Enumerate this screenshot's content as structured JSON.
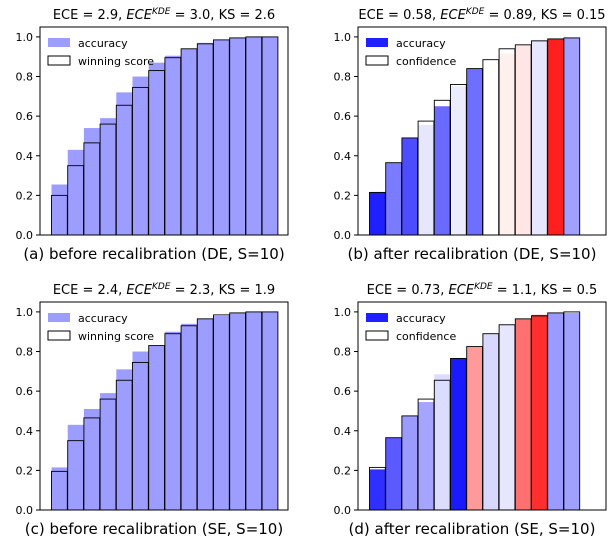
{
  "chart_data": [
    {
      "type": "bar",
      "title": "ECE = 2.9, ECE^KDE = 3.0, KS = 2.6",
      "title_parts": {
        "pre": "ECE = 2.9, ",
        "sym": "ECE",
        "sup": "KDE",
        "post": " = 3.0, KS = 2.6"
      },
      "caption": "(a) before recalibration (DE, S=10)",
      "ylim": [
        0,
        1.05
      ],
      "yticks": [
        "0.0",
        "0.2",
        "0.4",
        "0.6",
        "0.8",
        "1.0"
      ],
      "grid": false,
      "legend_position": "top-left",
      "style": "uniform",
      "series": [
        {
          "name": "accuracy",
          "values": [
            0.255,
            0.43,
            0.54,
            0.59,
            0.72,
            0.8,
            0.87,
            0.905,
            0.94,
            0.97,
            0.985,
            0.995,
            1.0,
            1.0
          ]
        },
        {
          "name": "winning score",
          "values": [
            0.2,
            0.35,
            0.465,
            0.56,
            0.655,
            0.745,
            0.83,
            0.895,
            0.94,
            0.965,
            0.985,
            0.995,
            1.0,
            1.0
          ]
        }
      ]
    },
    {
      "type": "bar",
      "title": "ECE = 0.58, ECE^KDE = 0.89, KS = 0.15",
      "title_parts": {
        "pre": "ECE = 0.58, ",
        "sym": "ECE",
        "sup": "KDE",
        "post": " = 0.89, KS = 0.15"
      },
      "caption": "(b) after recalibration (DE, S=10)",
      "ylim": [
        0,
        1.05
      ],
      "yticks": [
        "0.0",
        "0.2",
        "0.4",
        "0.6",
        "0.8",
        "1.0"
      ],
      "grid": false,
      "legend_position": "top-left",
      "style": "diverging",
      "series": [
        {
          "name": "accuracy",
          "values": [
            0.215,
            0.365,
            0.49,
            0.555,
            0.65,
            0.75,
            0.84,
            0.865,
            0.915,
            0.96,
            0.985,
            0.99,
            0.995,
            null
          ]
        },
        {
          "name": "confidence",
          "values": [
            0.215,
            0.365,
            0.49,
            0.575,
            0.68,
            0.76,
            0.84,
            0.885,
            0.94,
            0.96,
            0.98,
            0.99,
            0.995,
            null
          ]
        }
      ],
      "colors": [
        "#1f1fff",
        "#7b7bff",
        "#4d4dff",
        "#e6e6ff",
        "#6a6aff",
        "#ececff",
        "#6e6eff",
        "#ffffff",
        "#fff0f0",
        "#ffe6e6",
        "#e6e6ff",
        "#ff1f1f",
        "#a0a0ff",
        null
      ]
    },
    {
      "type": "bar",
      "title": "ECE = 2.4, ECE^KDE = 2.3, KS = 1.9",
      "title_parts": {
        "pre": "ECE = 2.4, ",
        "sym": "ECE",
        "sup": "KDE",
        "post": " = 2.3, KS = 1.9"
      },
      "caption": "(c) before recalibration (SE, S=10)",
      "ylim": [
        0,
        1.05
      ],
      "yticks": [
        "0.0",
        "0.2",
        "0.4",
        "0.6",
        "0.8",
        "1.0"
      ],
      "grid": false,
      "legend_position": "top-left",
      "style": "uniform",
      "series": [
        {
          "name": "accuracy",
          "values": [
            0.215,
            0.43,
            0.51,
            0.59,
            0.71,
            0.8,
            0.83,
            0.9,
            0.94,
            0.965,
            0.98,
            0.995,
            1.0,
            1.0
          ]
        },
        {
          "name": "winning score",
          "values": [
            0.195,
            0.35,
            0.465,
            0.56,
            0.655,
            0.745,
            0.83,
            0.89,
            0.93,
            0.965,
            0.985,
            0.995,
            1.0,
            1.0
          ]
        }
      ]
    },
    {
      "type": "bar",
      "title": "ECE = 0.73, ECE^KDE = 1.1, KS = 0.5",
      "title_parts": {
        "pre": "ECE = 0.73, ",
        "sym": "ECE",
        "sup": "KDE",
        "post": " = 1.1, KS = 0.5"
      },
      "caption": "(d) after recalibration (SE, S=10)",
      "ylim": [
        0,
        1.05
      ],
      "yticks": [
        "0.0",
        "0.2",
        "0.4",
        "0.6",
        "0.8",
        "1.0"
      ],
      "grid": false,
      "legend_position": "top-left",
      "style": "diverging",
      "series": [
        {
          "name": "accuracy",
          "values": [
            0.205,
            0.365,
            0.475,
            0.545,
            0.685,
            0.765,
            0.825,
            0.89,
            0.935,
            0.965,
            0.985,
            0.995,
            0.995,
            null
          ]
        },
        {
          "name": "confidence",
          "values": [
            0.215,
            0.365,
            0.475,
            0.56,
            0.655,
            0.765,
            0.825,
            0.89,
            0.935,
            0.965,
            0.98,
            0.995,
            1.0,
            null
          ]
        }
      ],
      "colors": [
        "#2f2fff",
        "#5a5aff",
        "#9a9aff",
        "#a5a5ff",
        "#dcdcff",
        "#1a1aff",
        "#ff9a9a",
        "#d8d8ff",
        "#e6e6ff",
        "#ff7070",
        "#ff2f2f",
        "#9a9aff",
        "#a0a0ff",
        null
      ]
    }
  ]
}
